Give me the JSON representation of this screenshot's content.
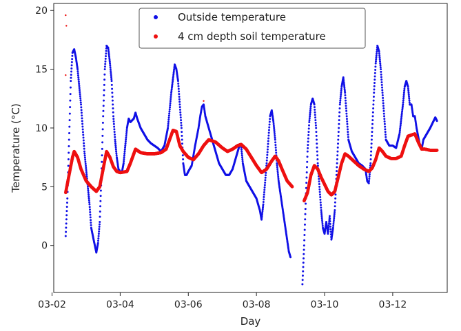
{
  "chart_data": {
    "type": "scatter",
    "xlabel": "Day",
    "ylabel": "Temperature (°C)",
    "xlim": [
      2.05,
      13.6
    ],
    "ylim": [
      -4.0,
      20.6
    ],
    "x_ticks": [
      {
        "value": 2,
        "label": "03-02"
      },
      {
        "value": 4,
        "label": "03-04"
      },
      {
        "value": 6,
        "label": "03-06"
      },
      {
        "value": 8,
        "label": "03-08"
      },
      {
        "value": 10,
        "label": "03-10"
      },
      {
        "value": 12,
        "label": "03-12"
      }
    ],
    "y_ticks": [
      0,
      5,
      10,
      15,
      20
    ],
    "grid": false,
    "legend_position": "top-center",
    "series": [
      {
        "name": "Outside temperature",
        "color": "#1010e6",
        "points": [
          [
            2.4,
            0.8
          ],
          [
            2.45,
            4.0
          ],
          [
            2.5,
            9.0
          ],
          [
            2.55,
            14.0
          ],
          [
            2.6,
            16.4
          ],
          [
            2.65,
            16.7
          ],
          [
            2.7,
            16.0
          ],
          [
            2.75,
            15.0
          ],
          [
            2.85,
            12.0
          ],
          [
            2.95,
            8.0
          ],
          [
            3.05,
            5.0
          ],
          [
            3.1,
            3.5
          ],
          [
            3.15,
            1.5
          ],
          [
            3.22,
            0.5
          ],
          [
            3.3,
            -0.6
          ],
          [
            3.35,
            0.2
          ],
          [
            3.4,
            2.0
          ],
          [
            3.45,
            6.0
          ],
          [
            3.5,
            11.0
          ],
          [
            3.55,
            15.0
          ],
          [
            3.6,
            17.0
          ],
          [
            3.65,
            16.8
          ],
          [
            3.7,
            15.5
          ],
          [
            3.75,
            14.0
          ],
          [
            3.8,
            11.0
          ],
          [
            3.85,
            9.0
          ],
          [
            3.9,
            7.5
          ],
          [
            3.95,
            6.5
          ],
          [
            4.0,
            6.3
          ],
          [
            4.05,
            6.2
          ],
          [
            4.1,
            7.0
          ],
          [
            4.15,
            8.5
          ],
          [
            4.2,
            10.0
          ],
          [
            4.25,
            10.8
          ],
          [
            4.3,
            10.5
          ],
          [
            4.4,
            10.8
          ],
          [
            4.45,
            11.3
          ],
          [
            4.5,
            10.8
          ],
          [
            4.6,
            10.0
          ],
          [
            4.7,
            9.5
          ],
          [
            4.8,
            9.0
          ],
          [
            4.9,
            8.7
          ],
          [
            5.0,
            8.5
          ],
          [
            5.1,
            8.3
          ],
          [
            5.2,
            8.0
          ],
          [
            5.3,
            8.5
          ],
          [
            5.4,
            10.0
          ],
          [
            5.5,
            13.0
          ],
          [
            5.6,
            15.4
          ],
          [
            5.65,
            15.0
          ],
          [
            5.7,
            14.0
          ],
          [
            5.75,
            12.0
          ],
          [
            5.8,
            10.0
          ],
          [
            5.85,
            7.0
          ],
          [
            5.9,
            6.0
          ],
          [
            5.95,
            6.0
          ],
          [
            6.0,
            6.3
          ],
          [
            6.1,
            6.8
          ],
          [
            6.2,
            8.5
          ],
          [
            6.3,
            10.0
          ],
          [
            6.35,
            11.0
          ],
          [
            6.4,
            11.8
          ],
          [
            6.45,
            12.0
          ],
          [
            6.5,
            11.0
          ],
          [
            6.6,
            10.0
          ],
          [
            6.7,
            9.0
          ],
          [
            6.8,
            8.0
          ],
          [
            6.9,
            7.0
          ],
          [
            7.0,
            6.5
          ],
          [
            7.1,
            6.0
          ],
          [
            7.2,
            6.0
          ],
          [
            7.3,
            6.5
          ],
          [
            7.4,
            7.5
          ],
          [
            7.5,
            8.5
          ],
          [
            7.55,
            8.5
          ],
          [
            7.6,
            7.0
          ],
          [
            7.7,
            5.5
          ],
          [
            7.8,
            5.0
          ],
          [
            7.9,
            4.5
          ],
          [
            8.0,
            4.0
          ],
          [
            8.1,
            3.0
          ],
          [
            8.15,
            2.2
          ],
          [
            8.2,
            3.5
          ],
          [
            8.3,
            7.0
          ],
          [
            8.4,
            11.0
          ],
          [
            8.45,
            11.5
          ],
          [
            8.5,
            10.5
          ],
          [
            8.55,
            9.0
          ],
          [
            8.6,
            7.0
          ],
          [
            8.65,
            5.5
          ],
          [
            8.7,
            4.5
          ],
          [
            8.75,
            3.5
          ],
          [
            8.8,
            2.5
          ],
          [
            8.85,
            1.5
          ],
          [
            8.9,
            0.5
          ],
          [
            8.95,
            -0.5
          ],
          [
            9.0,
            -1.0
          ],
          [
            9.35,
            -3.3
          ],
          [
            9.4,
            0.0
          ],
          [
            9.45,
            4.0
          ],
          [
            9.5,
            8.0
          ],
          [
            9.55,
            10.5
          ],
          [
            9.6,
            12.0
          ],
          [
            9.65,
            12.5
          ],
          [
            9.7,
            12.0
          ],
          [
            9.75,
            10.0
          ],
          [
            9.8,
            7.0
          ],
          [
            9.85,
            5.0
          ],
          [
            9.9,
            3.0
          ],
          [
            9.95,
            1.5
          ],
          [
            10.0,
            1.0
          ],
          [
            10.05,
            2.0
          ],
          [
            10.1,
            1.0
          ],
          [
            10.15,
            2.5
          ],
          [
            10.2,
            0.5
          ],
          [
            10.25,
            1.5
          ],
          [
            10.3,
            3.0
          ],
          [
            10.35,
            6.0
          ],
          [
            10.4,
            9.0
          ],
          [
            10.45,
            12.0
          ],
          [
            10.5,
            13.5
          ],
          [
            10.55,
            14.3
          ],
          [
            10.6,
            13.0
          ],
          [
            10.65,
            11.0
          ],
          [
            10.7,
            9.0
          ],
          [
            10.8,
            8.0
          ],
          [
            10.9,
            7.5
          ],
          [
            11.0,
            7.0
          ],
          [
            11.1,
            6.8
          ],
          [
            11.2,
            6.5
          ],
          [
            11.25,
            5.5
          ],
          [
            11.3,
            5.3
          ],
          [
            11.35,
            7.0
          ],
          [
            11.4,
            10.0
          ],
          [
            11.45,
            13.0
          ],
          [
            11.5,
            15.5
          ],
          [
            11.55,
            17.0
          ],
          [
            11.6,
            16.5
          ],
          [
            11.65,
            15.0
          ],
          [
            11.7,
            13.0
          ],
          [
            11.75,
            11.0
          ],
          [
            11.8,
            9.0
          ],
          [
            11.9,
            8.5
          ],
          [
            12.0,
            8.5
          ],
          [
            12.1,
            8.3
          ],
          [
            12.2,
            9.5
          ],
          [
            12.3,
            12.0
          ],
          [
            12.35,
            13.5
          ],
          [
            12.4,
            14.0
          ],
          [
            12.45,
            13.5
          ],
          [
            12.5,
            12.0
          ],
          [
            12.55,
            12.0
          ],
          [
            12.6,
            11.0
          ],
          [
            12.65,
            11.0
          ],
          [
            12.7,
            10.0
          ],
          [
            12.8,
            8.5
          ],
          [
            12.85,
            8.2
          ],
          [
            12.9,
            9.0
          ],
          [
            13.0,
            9.5
          ],
          [
            13.1,
            10.0
          ],
          [
            13.2,
            10.6
          ],
          [
            13.25,
            10.9
          ],
          [
            13.3,
            10.6
          ]
        ]
      },
      {
        "name": "4 cm depth soil temperature",
        "color": "#ee1111",
        "points": [
          [
            2.4,
            4.5
          ],
          [
            2.5,
            6.0
          ],
          [
            2.6,
            7.5
          ],
          [
            2.65,
            8.0
          ],
          [
            2.75,
            7.5
          ],
          [
            2.85,
            6.5
          ],
          [
            3.0,
            5.5
          ],
          [
            3.15,
            5.0
          ],
          [
            3.3,
            4.6
          ],
          [
            3.4,
            5.0
          ],
          [
            3.5,
            6.5
          ],
          [
            3.6,
            8.0
          ],
          [
            3.7,
            7.5
          ],
          [
            3.8,
            6.7
          ],
          [
            3.9,
            6.3
          ],
          [
            4.0,
            6.2
          ],
          [
            4.2,
            6.3
          ],
          [
            4.3,
            7.0
          ],
          [
            4.45,
            8.2
          ],
          [
            4.6,
            7.9
          ],
          [
            4.8,
            7.8
          ],
          [
            5.0,
            7.8
          ],
          [
            5.2,
            7.9
          ],
          [
            5.35,
            8.2
          ],
          [
            5.45,
            9.0
          ],
          [
            5.55,
            9.8
          ],
          [
            5.65,
            9.7
          ],
          [
            5.75,
            8.5
          ],
          [
            5.85,
            8.0
          ],
          [
            6.0,
            7.5
          ],
          [
            6.15,
            7.3
          ],
          [
            6.3,
            7.8
          ],
          [
            6.45,
            8.5
          ],
          [
            6.6,
            9.0
          ],
          [
            6.8,
            8.8
          ],
          [
            7.0,
            8.3
          ],
          [
            7.15,
            8.0
          ],
          [
            7.3,
            8.2
          ],
          [
            7.45,
            8.5
          ],
          [
            7.55,
            8.6
          ],
          [
            7.7,
            8.2
          ],
          [
            7.85,
            7.5
          ],
          [
            8.0,
            6.8
          ],
          [
            8.15,
            6.2
          ],
          [
            8.3,
            6.5
          ],
          [
            8.45,
            7.2
          ],
          [
            8.55,
            7.6
          ],
          [
            8.65,
            7.2
          ],
          [
            8.75,
            6.5
          ],
          [
            8.9,
            5.5
          ],
          [
            9.05,
            5.0
          ],
          [
            9.4,
            3.8
          ],
          [
            9.5,
            4.5
          ],
          [
            9.6,
            6.0
          ],
          [
            9.7,
            6.8
          ],
          [
            9.8,
            6.5
          ],
          [
            9.9,
            5.8
          ],
          [
            10.0,
            5.2
          ],
          [
            10.1,
            4.6
          ],
          [
            10.2,
            4.3
          ],
          [
            10.3,
            4.6
          ],
          [
            10.4,
            5.8
          ],
          [
            10.5,
            7.0
          ],
          [
            10.6,
            7.8
          ],
          [
            10.7,
            7.6
          ],
          [
            10.85,
            7.2
          ],
          [
            11.0,
            6.8
          ],
          [
            11.15,
            6.5
          ],
          [
            11.3,
            6.3
          ],
          [
            11.4,
            6.6
          ],
          [
            11.5,
            7.3
          ],
          [
            11.6,
            8.3
          ],
          [
            11.7,
            8.0
          ],
          [
            11.8,
            7.6
          ],
          [
            11.95,
            7.4
          ],
          [
            12.1,
            7.4
          ],
          [
            12.25,
            7.6
          ],
          [
            12.35,
            8.5
          ],
          [
            12.45,
            9.3
          ],
          [
            12.55,
            9.4
          ],
          [
            12.65,
            9.5
          ],
          [
            12.75,
            8.8
          ],
          [
            12.85,
            8.2
          ],
          [
            12.95,
            8.2
          ],
          [
            13.1,
            8.1
          ],
          [
            13.3,
            8.1
          ]
        ],
        "outliers": [
          [
            2.4,
            19.6
          ],
          [
            2.42,
            18.7
          ],
          [
            2.4,
            14.5
          ],
          [
            6.45,
            12.3
          ]
        ]
      }
    ]
  }
}
